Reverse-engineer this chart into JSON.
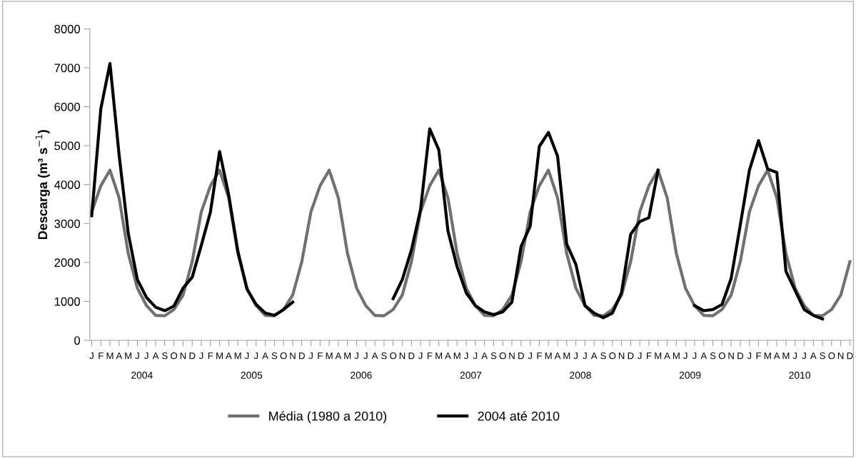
{
  "chart_data": {
    "type": "line",
    "ylabel": "Descarga (m³ s$^{−1}$)",
    "categories": [
      "J",
      "F",
      "M",
      "A",
      "M",
      "J",
      "J",
      "A",
      "S",
      "O",
      "N",
      "D",
      "J",
      "F",
      "M",
      "A",
      "M",
      "J",
      "J",
      "A",
      "S",
      "O",
      "N",
      "D",
      "J",
      "F",
      "M",
      "A",
      "M",
      "J",
      "J",
      "A",
      "S",
      "O",
      "N",
      "D",
      "J",
      "F",
      "M",
      "A",
      "M",
      "J",
      "J",
      "A",
      "S",
      "O",
      "N",
      "D",
      "J",
      "F",
      "M",
      "A",
      "M",
      "J",
      "J",
      "A",
      "S",
      "O",
      "N",
      "D",
      "J",
      "F",
      "M",
      "A",
      "M",
      "J",
      "J",
      "A",
      "S",
      "O",
      "N",
      "D",
      "J",
      "F",
      "M",
      "A",
      "M",
      "J",
      "J",
      "A",
      "S",
      "O",
      "N",
      "D"
    ],
    "series": [
      {
        "name": "Média (1980 a 2010)",
        "color": "#707070",
        "values": [
          3300,
          3970,
          4370,
          3660,
          2230,
          1340,
          890,
          640,
          630,
          790,
          1160,
          2020,
          3300,
          3970,
          4370,
          3660,
          2230,
          1340,
          890,
          640,
          630,
          790,
          1160,
          2020,
          3300,
          3970,
          4370,
          3660,
          2230,
          1340,
          890,
          640,
          630,
          790,
          1160,
          2020,
          3300,
          3970,
          4370,
          3660,
          2230,
          1340,
          890,
          640,
          630,
          790,
          1160,
          2020,
          3300,
          3970,
          4370,
          3660,
          2230,
          1340,
          890,
          640,
          630,
          790,
          1160,
          2020,
          3300,
          3970,
          4370,
          3660,
          2230,
          1340,
          890,
          640,
          630,
          790,
          1160,
          2020,
          3300,
          3970,
          4370,
          3660,
          2230,
          1340,
          890,
          640,
          630,
          790,
          1160,
          2020
        ]
      },
      {
        "name": "2004 até 2010",
        "color": "#000000",
        "values": [
          3200,
          5950,
          7110,
          4760,
          2750,
          1560,
          1100,
          850,
          760,
          880,
          1340,
          1620,
          2440,
          3300,
          4850,
          3730,
          2290,
          1310,
          920,
          700,
          640,
          790,
          980,
          null,
          null,
          null,
          null,
          null,
          null,
          null,
          null,
          null,
          null,
          1070,
          1560,
          2320,
          3360,
          5430,
          4890,
          2810,
          1890,
          1220,
          890,
          730,
          660,
          730,
          980,
          2410,
          2930,
          4980,
          5340,
          4730,
          2470,
          1950,
          890,
          700,
          580,
          700,
          1220,
          2720,
          3050,
          3150,
          4370,
          null,
          null,
          null,
          890,
          760,
          790,
          920,
          1590,
          2960,
          4370,
          5130,
          4400,
          4310,
          1770,
          1280,
          790,
          640,
          550,
          null,
          null,
          null
        ]
      }
    ],
    "ylim": [
      0,
      8000
    ],
    "yticks": [
      0,
      1000,
      2000,
      3000,
      4000,
      5000,
      6000,
      7000,
      8000
    ],
    "annotations": [
      "2004",
      "2005",
      "2006",
      "2007",
      "2008",
      "2009",
      "2010"
    ],
    "grid": false,
    "legend": "bottom",
    "marker": "none",
    "line_style": "solid"
  }
}
